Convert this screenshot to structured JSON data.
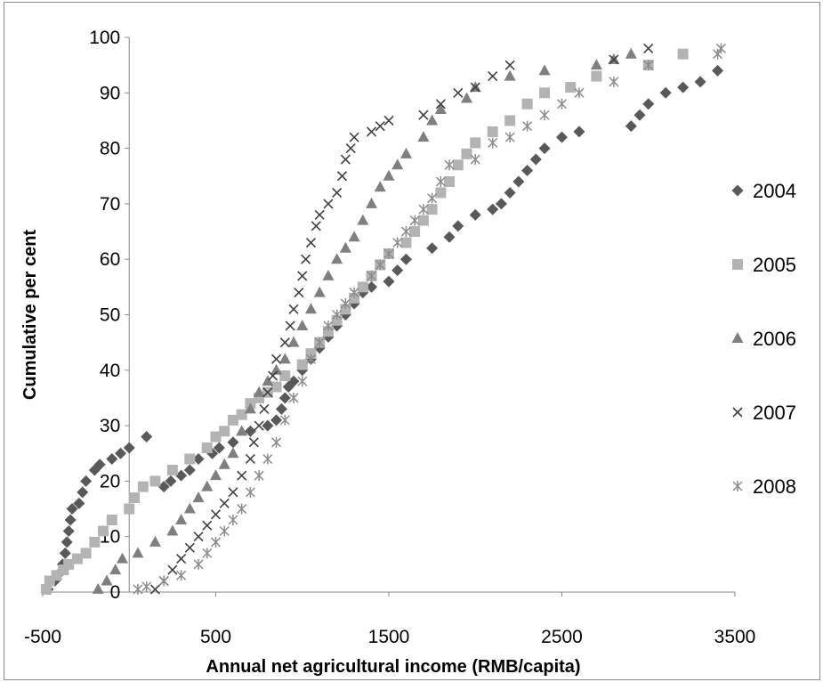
{
  "chart_data": {
    "type": "scatter",
    "title": "",
    "xlabel": "Annual net agricultural income (RMB/capita)",
    "ylabel": "Cumulative per cent",
    "xlim": [
      -500,
      3500
    ],
    "ylim": [
      0,
      100
    ],
    "xticks": [
      "-500",
      "500",
      "1500",
      "2500",
      "3500"
    ],
    "yticks": [
      "0",
      "10",
      "20",
      "30",
      "40",
      "50",
      "60",
      "70",
      "80",
      "90",
      "100"
    ],
    "grid": false,
    "legend": "right",
    "series": [
      {
        "name": "2004",
        "marker": "diamond",
        "color": "#595959",
        "points": [
          [
            -470,
            0.5
          ],
          [
            -430,
            2
          ],
          [
            -400,
            3.5
          ],
          [
            -385,
            5
          ],
          [
            -370,
            7
          ],
          [
            -360,
            9
          ],
          [
            -350,
            11
          ],
          [
            -340,
            13
          ],
          [
            -330,
            15
          ],
          [
            -290,
            16
          ],
          [
            -270,
            18
          ],
          [
            -250,
            20
          ],
          [
            -200,
            22
          ],
          [
            -170,
            23
          ],
          [
            -100,
            24
          ],
          [
            -50,
            25
          ],
          [
            0,
            26
          ],
          [
            100,
            28
          ],
          [
            200,
            19
          ],
          [
            240,
            20
          ],
          [
            300,
            21
          ],
          [
            350,
            22
          ],
          [
            400,
            24
          ],
          [
            480,
            25
          ],
          [
            520,
            26
          ],
          [
            600,
            27
          ],
          [
            700,
            29
          ],
          [
            800,
            30
          ],
          [
            850,
            31
          ],
          [
            880,
            33
          ],
          [
            900,
            35
          ],
          [
            920,
            37
          ],
          [
            950,
            38
          ],
          [
            1000,
            40
          ],
          [
            1050,
            42
          ],
          [
            1100,
            44
          ],
          [
            1150,
            46
          ],
          [
            1200,
            48
          ],
          [
            1250,
            50
          ],
          [
            1300,
            52
          ],
          [
            1350,
            54
          ],
          [
            1400,
            55
          ],
          [
            1500,
            56
          ],
          [
            1550,
            58
          ],
          [
            1600,
            60
          ],
          [
            1750,
            62
          ],
          [
            1850,
            64
          ],
          [
            1900,
            66
          ],
          [
            2000,
            68
          ],
          [
            2100,
            69
          ],
          [
            2150,
            70
          ],
          [
            2200,
            72
          ],
          [
            2250,
            74
          ],
          [
            2300,
            76
          ],
          [
            2350,
            78
          ],
          [
            2400,
            80
          ],
          [
            2500,
            82
          ],
          [
            2600,
            83
          ],
          [
            2900,
            84
          ],
          [
            2950,
            86
          ],
          [
            3000,
            88
          ],
          [
            3100,
            90
          ],
          [
            3200,
            91
          ],
          [
            3300,
            92
          ],
          [
            3400,
            94
          ]
        ]
      },
      {
        "name": "2005",
        "marker": "square",
        "color": "#b3b3b3",
        "points": [
          [
            -480,
            0.5
          ],
          [
            -460,
            2
          ],
          [
            -420,
            3
          ],
          [
            -380,
            4
          ],
          [
            -350,
            5
          ],
          [
            -300,
            6
          ],
          [
            -250,
            7
          ],
          [
            -200,
            9
          ],
          [
            -150,
            11
          ],
          [
            -100,
            13
          ],
          [
            0,
            15
          ],
          [
            30,
            17
          ],
          [
            80,
            19
          ],
          [
            150,
            20
          ],
          [
            250,
            22
          ],
          [
            350,
            24
          ],
          [
            450,
            26
          ],
          [
            500,
            28
          ],
          [
            550,
            29
          ],
          [
            600,
            31
          ],
          [
            650,
            32
          ],
          [
            700,
            34
          ],
          [
            750,
            35
          ],
          [
            800,
            36
          ],
          [
            850,
            37
          ],
          [
            900,
            39
          ],
          [
            1000,
            41
          ],
          [
            1050,
            43
          ],
          [
            1100,
            45
          ],
          [
            1150,
            47
          ],
          [
            1200,
            49
          ],
          [
            1250,
            51
          ],
          [
            1300,
            53
          ],
          [
            1350,
            55
          ],
          [
            1400,
            57
          ],
          [
            1450,
            59
          ],
          [
            1500,
            61
          ],
          [
            1600,
            63
          ],
          [
            1650,
            65
          ],
          [
            1700,
            67
          ],
          [
            1750,
            69
          ],
          [
            1800,
            72
          ],
          [
            1850,
            74
          ],
          [
            1900,
            77
          ],
          [
            1950,
            79
          ],
          [
            2000,
            81
          ],
          [
            2100,
            83
          ],
          [
            2200,
            85
          ],
          [
            2300,
            88
          ],
          [
            2400,
            90
          ],
          [
            2550,
            91
          ],
          [
            2700,
            93
          ],
          [
            3000,
            95
          ],
          [
            3200,
            97
          ]
        ]
      },
      {
        "name": "2006",
        "marker": "triangle",
        "color": "#7f7f7f",
        "points": [
          [
            -180,
            0.5
          ],
          [
            -130,
            2
          ],
          [
            -80,
            4
          ],
          [
            -40,
            6
          ],
          [
            50,
            7
          ],
          [
            150,
            9
          ],
          [
            250,
            11
          ],
          [
            300,
            13
          ],
          [
            350,
            15
          ],
          [
            400,
            17
          ],
          [
            450,
            19
          ],
          [
            500,
            21
          ],
          [
            550,
            23
          ],
          [
            600,
            25
          ],
          [
            650,
            29
          ],
          [
            700,
            33
          ],
          [
            750,
            36
          ],
          [
            800,
            38
          ],
          [
            850,
            40
          ],
          [
            900,
            42
          ],
          [
            950,
            45
          ],
          [
            1000,
            48
          ],
          [
            1050,
            51
          ],
          [
            1100,
            54
          ],
          [
            1150,
            57
          ],
          [
            1200,
            60
          ],
          [
            1250,
            62
          ],
          [
            1300,
            64
          ],
          [
            1350,
            67
          ],
          [
            1400,
            70
          ],
          [
            1450,
            73
          ],
          [
            1500,
            75
          ],
          [
            1550,
            77
          ],
          [
            1600,
            79
          ],
          [
            1700,
            82
          ],
          [
            1750,
            85
          ],
          [
            1800,
            87
          ],
          [
            1950,
            89
          ],
          [
            2000,
            91
          ],
          [
            2200,
            93
          ],
          [
            2400,
            94
          ],
          [
            2700,
            95
          ],
          [
            2800,
            96
          ],
          [
            2900,
            97
          ]
        ]
      },
      {
        "name": "2007",
        "marker": "x",
        "color": "#404040",
        "points": [
          [
            150,
            0.5
          ],
          [
            200,
            2
          ],
          [
            250,
            4
          ],
          [
            300,
            6
          ],
          [
            350,
            8
          ],
          [
            400,
            10
          ],
          [
            450,
            12
          ],
          [
            500,
            14
          ],
          [
            550,
            16
          ],
          [
            600,
            18
          ],
          [
            650,
            21
          ],
          [
            700,
            24
          ],
          [
            720,
            27
          ],
          [
            750,
            30
          ],
          [
            780,
            33
          ],
          [
            800,
            36
          ],
          [
            830,
            39
          ],
          [
            850,
            42
          ],
          [
            900,
            45
          ],
          [
            930,
            48
          ],
          [
            950,
            51
          ],
          [
            980,
            54
          ],
          [
            1000,
            57
          ],
          [
            1020,
            60
          ],
          [
            1050,
            63
          ],
          [
            1080,
            66
          ],
          [
            1100,
            68
          ],
          [
            1150,
            70
          ],
          [
            1200,
            72
          ],
          [
            1230,
            75
          ],
          [
            1250,
            78
          ],
          [
            1280,
            80
          ],
          [
            1300,
            82
          ],
          [
            1400,
            83
          ],
          [
            1450,
            84
          ],
          [
            1500,
            85
          ],
          [
            1700,
            86
          ],
          [
            1800,
            88
          ],
          [
            1900,
            90
          ],
          [
            2000,
            91
          ],
          [
            2100,
            93
          ],
          [
            2200,
            95
          ],
          [
            2800,
            96
          ],
          [
            3000,
            98
          ]
        ]
      },
      {
        "name": "2008",
        "marker": "asterisk",
        "color": "#8c8c8c",
        "points": [
          [
            50,
            0.5
          ],
          [
            100,
            1
          ],
          [
            200,
            2
          ],
          [
            300,
            3
          ],
          [
            400,
            5
          ],
          [
            450,
            7
          ],
          [
            500,
            9
          ],
          [
            550,
            11
          ],
          [
            600,
            13
          ],
          [
            650,
            15
          ],
          [
            700,
            18
          ],
          [
            750,
            21
          ],
          [
            800,
            24
          ],
          [
            850,
            27
          ],
          [
            900,
            31
          ],
          [
            950,
            35
          ],
          [
            1000,
            38
          ],
          [
            1050,
            42
          ],
          [
            1100,
            45
          ],
          [
            1150,
            48
          ],
          [
            1200,
            50
          ],
          [
            1250,
            52
          ],
          [
            1300,
            54
          ],
          [
            1400,
            57
          ],
          [
            1450,
            59
          ],
          [
            1500,
            61
          ],
          [
            1550,
            63
          ],
          [
            1600,
            65
          ],
          [
            1650,
            67
          ],
          [
            1700,
            69
          ],
          [
            1750,
            71
          ],
          [
            1800,
            74
          ],
          [
            1850,
            77
          ],
          [
            2000,
            78
          ],
          [
            2100,
            81
          ],
          [
            2200,
            82
          ],
          [
            2300,
            84
          ],
          [
            2400,
            86
          ],
          [
            2500,
            88
          ],
          [
            2600,
            90
          ],
          [
            2800,
            92
          ],
          [
            3000,
            95
          ],
          [
            3400,
            97
          ],
          [
            3420,
            98
          ]
        ]
      }
    ]
  }
}
